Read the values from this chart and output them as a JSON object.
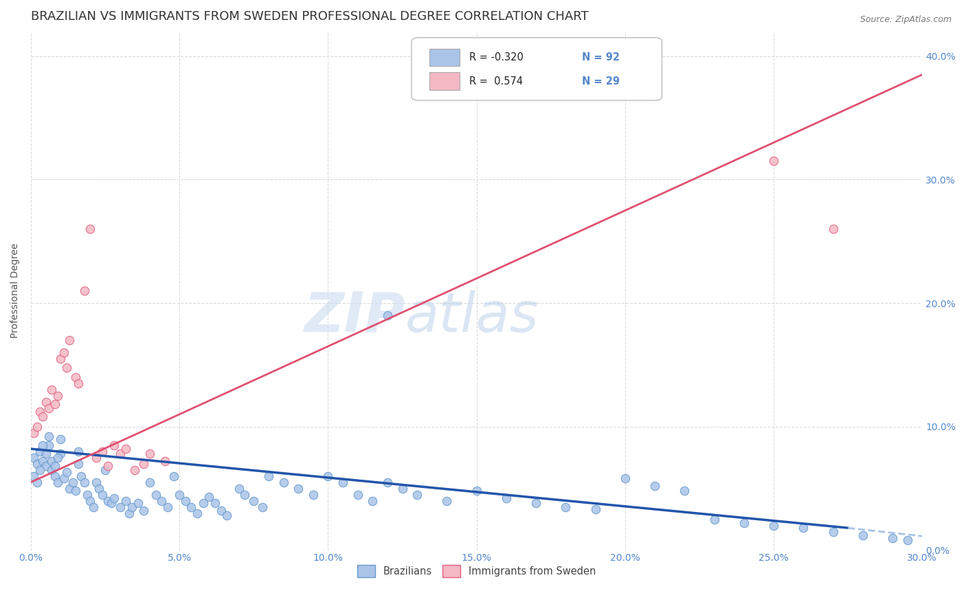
{
  "title": "BRAZILIAN VS IMMIGRANTS FROM SWEDEN PROFESSIONAL DEGREE CORRELATION CHART",
  "source": "Source: ZipAtlas.com",
  "xlabel_ticks": [
    "0.0%",
    "5.0%",
    "10.0%",
    "15.0%",
    "20.0%",
    "25.0%",
    "30.0%"
  ],
  "ylabel_label": "Professional Degree",
  "ylabel_ticks": [
    "0.0%",
    "10.0%",
    "20.0%",
    "30.0%",
    "40.0%"
  ],
  "xlim": [
    0.0,
    0.3
  ],
  "ylim": [
    0.0,
    0.42
  ],
  "watermark_zip": "ZIP",
  "watermark_atlas": "atlas",
  "legend_entries": [
    {
      "color": "#aac4e8",
      "R": "-0.320",
      "N": "92"
    },
    {
      "color": "#f4b8c4",
      "R": " 0.574",
      "N": "29"
    }
  ],
  "blue_scatter": {
    "color": "#aac4e8",
    "edge_color": "#6699cc",
    "points": [
      [
        0.001,
        0.075
      ],
      [
        0.002,
        0.07
      ],
      [
        0.003,
        0.08
      ],
      [
        0.004,
        0.072
      ],
      [
        0.005,
        0.068
      ],
      [
        0.006,
        0.085
      ],
      [
        0.007,
        0.065
      ],
      [
        0.008,
        0.06
      ],
      [
        0.009,
        0.055
      ],
      [
        0.01,
        0.09
      ],
      [
        0.01,
        0.078
      ],
      [
        0.011,
        0.058
      ],
      [
        0.012,
        0.063
      ],
      [
        0.013,
        0.05
      ],
      [
        0.014,
        0.055
      ],
      [
        0.015,
        0.048
      ],
      [
        0.016,
        0.08
      ],
      [
        0.016,
        0.07
      ],
      [
        0.017,
        0.06
      ],
      [
        0.018,
        0.055
      ],
      [
        0.019,
        0.045
      ],
      [
        0.02,
        0.04
      ],
      [
        0.021,
        0.035
      ],
      [
        0.022,
        0.055
      ],
      [
        0.023,
        0.05
      ],
      [
        0.024,
        0.045
      ],
      [
        0.025,
        0.065
      ],
      [
        0.026,
        0.04
      ],
      [
        0.027,
        0.038
      ],
      [
        0.028,
        0.042
      ],
      [
        0.03,
        0.035
      ],
      [
        0.032,
        0.04
      ],
      [
        0.033,
        0.03
      ],
      [
        0.034,
        0.035
      ],
      [
        0.036,
        0.038
      ],
      [
        0.038,
        0.032
      ],
      [
        0.04,
        0.055
      ],
      [
        0.042,
        0.045
      ],
      [
        0.044,
        0.04
      ],
      [
        0.046,
        0.035
      ],
      [
        0.048,
        0.06
      ],
      [
        0.05,
        0.045
      ],
      [
        0.052,
        0.04
      ],
      [
        0.054,
        0.035
      ],
      [
        0.056,
        0.03
      ],
      [
        0.058,
        0.038
      ],
      [
        0.06,
        0.043
      ],
      [
        0.062,
        0.038
      ],
      [
        0.064,
        0.032
      ],
      [
        0.066,
        0.028
      ],
      [
        0.07,
        0.05
      ],
      [
        0.072,
        0.045
      ],
      [
        0.075,
        0.04
      ],
      [
        0.078,
        0.035
      ],
      [
        0.08,
        0.06
      ],
      [
        0.085,
        0.055
      ],
      [
        0.09,
        0.05
      ],
      [
        0.095,
        0.045
      ],
      [
        0.1,
        0.06
      ],
      [
        0.105,
        0.055
      ],
      [
        0.11,
        0.045
      ],
      [
        0.115,
        0.04
      ],
      [
        0.12,
        0.055
      ],
      [
        0.125,
        0.05
      ],
      [
        0.13,
        0.045
      ],
      [
        0.14,
        0.04
      ],
      [
        0.15,
        0.048
      ],
      [
        0.16,
        0.042
      ],
      [
        0.17,
        0.038
      ],
      [
        0.18,
        0.035
      ],
      [
        0.19,
        0.033
      ],
      [
        0.2,
        0.058
      ],
      [
        0.21,
        0.052
      ],
      [
        0.22,
        0.048
      ],
      [
        0.001,
        0.06
      ],
      [
        0.002,
        0.055
      ],
      [
        0.003,
        0.065
      ],
      [
        0.004,
        0.085
      ],
      [
        0.005,
        0.078
      ],
      [
        0.006,
        0.092
      ],
      [
        0.007,
        0.072
      ],
      [
        0.008,
        0.068
      ],
      [
        0.009,
        0.075
      ],
      [
        0.12,
        0.19
      ],
      [
        0.23,
        0.025
      ],
      [
        0.24,
        0.022
      ],
      [
        0.25,
        0.02
      ],
      [
        0.26,
        0.018
      ],
      [
        0.27,
        0.015
      ],
      [
        0.28,
        0.012
      ],
      [
        0.29,
        0.01
      ],
      [
        0.295,
        0.008
      ]
    ]
  },
  "pink_scatter": {
    "color": "#f4b8c4",
    "edge_color": "#e06080",
    "points": [
      [
        0.001,
        0.095
      ],
      [
        0.002,
        0.1
      ],
      [
        0.003,
        0.112
      ],
      [
        0.004,
        0.108
      ],
      [
        0.005,
        0.12
      ],
      [
        0.006,
        0.115
      ],
      [
        0.007,
        0.13
      ],
      [
        0.008,
        0.118
      ],
      [
        0.009,
        0.125
      ],
      [
        0.01,
        0.155
      ],
      [
        0.011,
        0.16
      ],
      [
        0.012,
        0.148
      ],
      [
        0.013,
        0.17
      ],
      [
        0.015,
        0.14
      ],
      [
        0.016,
        0.135
      ],
      [
        0.018,
        0.21
      ],
      [
        0.02,
        0.26
      ],
      [
        0.022,
        0.075
      ],
      [
        0.024,
        0.08
      ],
      [
        0.026,
        0.068
      ],
      [
        0.028,
        0.085
      ],
      [
        0.03,
        0.078
      ],
      [
        0.032,
        0.082
      ],
      [
        0.035,
        0.065
      ],
      [
        0.038,
        0.07
      ],
      [
        0.04,
        0.078
      ],
      [
        0.045,
        0.072
      ],
      [
        0.25,
        0.315
      ],
      [
        0.27,
        0.26
      ]
    ]
  },
  "blue_line": {
    "color": "#2255aa",
    "x": [
      0.0,
      0.275
    ],
    "y": [
      0.082,
      0.018
    ],
    "linestyle": "solid",
    "linewidth": 2.5
  },
  "pink_line": {
    "color": "#e05070",
    "x": [
      0.0,
      0.3
    ],
    "y": [
      0.055,
      0.385
    ],
    "linestyle": "solid",
    "linewidth": 2.0
  },
  "blue_dashed": {
    "color": "#aac4e8",
    "x": [
      0.275,
      0.305
    ],
    "y": [
      0.018,
      0.01
    ],
    "linestyle": "dashed",
    "linewidth": 2.0
  },
  "bg_color": "#ffffff",
  "grid_color": "#cccccc",
  "tick_color": "#5588cc",
  "title_color": "#333333",
  "title_fontsize": 13,
  "label_fontsize": 10,
  "scatter_size": 80
}
